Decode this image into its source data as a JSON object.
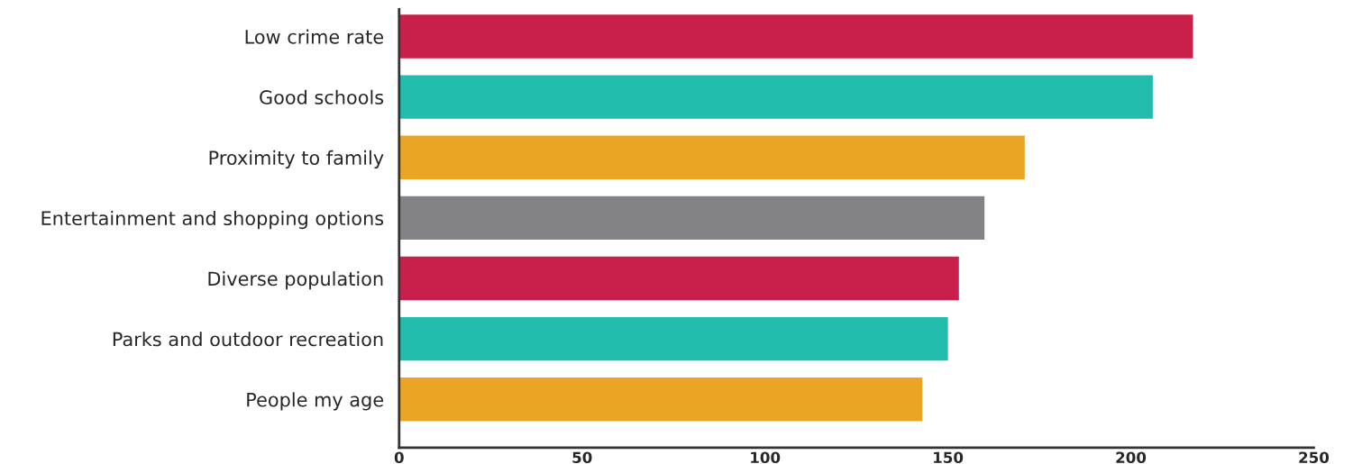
{
  "chart_data": {
    "type": "bar",
    "orientation": "horizontal",
    "categories": [
      "Low crime rate",
      "Good schools",
      "Proximity to family",
      "Entertainment and shopping options",
      "Diverse population",
      "Parks and outdoor recreation",
      "People my age"
    ],
    "values": [
      217,
      206,
      171,
      160,
      153,
      150,
      143
    ],
    "colors": [
      "#c8204a",
      "#22bcac",
      "#e9a523",
      "#838387",
      "#c8204a",
      "#22bcac",
      "#e9a523"
    ],
    "xlim": [
      0,
      250
    ],
    "xticks": [
      0,
      50,
      100,
      150,
      200,
      250
    ],
    "grid": false,
    "legend": false
  }
}
